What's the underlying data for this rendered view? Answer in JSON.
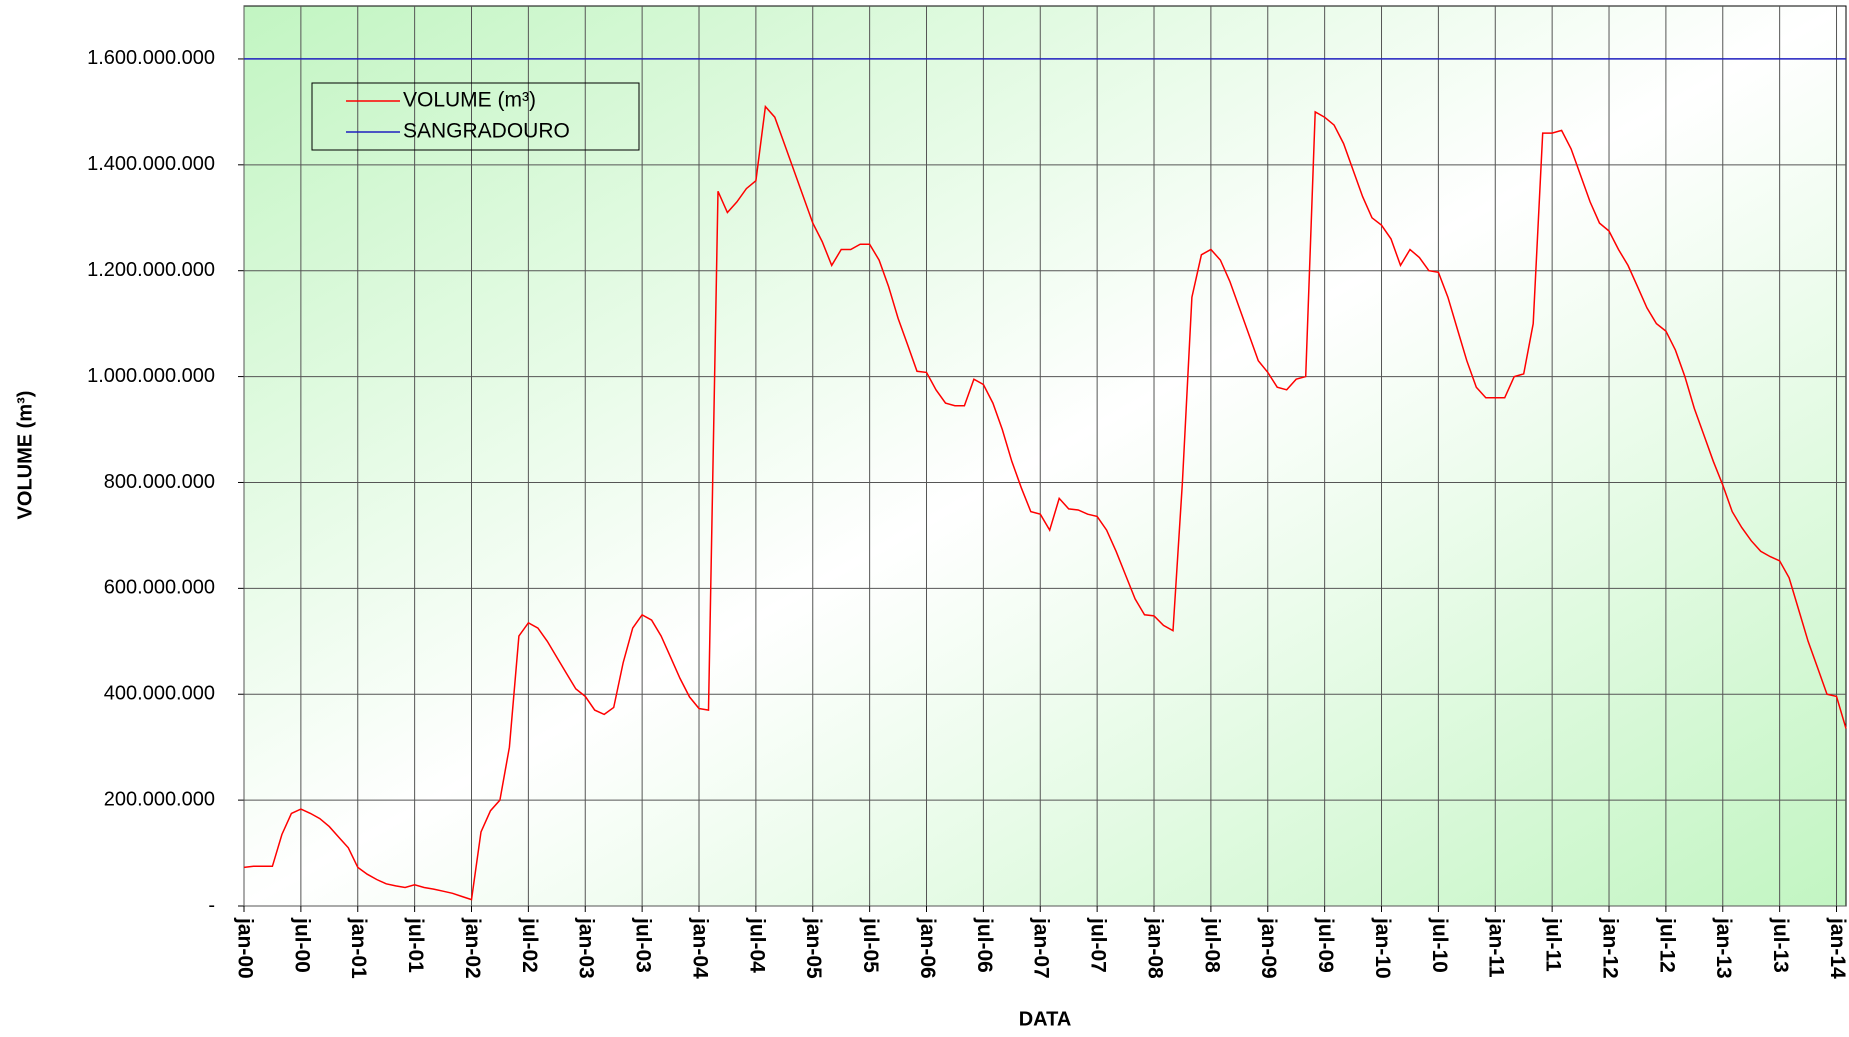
{
  "chart_data": {
    "type": "line",
    "ylabel": "VOLUME (m³)",
    "xlabel": "DATA",
    "xlim": [
      "2000-01",
      "2014-02"
    ],
    "ylim": [
      0,
      1700000000
    ],
    "yticks": [
      {
        "value": 0,
        "label": "-"
      },
      {
        "value": 200000000,
        "label": "200.000.000"
      },
      {
        "value": 400000000,
        "label": "400.000.000"
      },
      {
        "value": 600000000,
        "label": "600.000.000"
      },
      {
        "value": 800000000,
        "label": "800.000.000"
      },
      {
        "value": 1000000000,
        "label": "1.000.000.000"
      },
      {
        "value": 1200000000,
        "label": "1.200.000.000"
      },
      {
        "value": 1400000000,
        "label": "1.400.000.000"
      },
      {
        "value": 1600000000,
        "label": "1.600.000.000"
      }
    ],
    "xticks": [
      {
        "value": "2000-01",
        "label": "jan-00"
      },
      {
        "value": "2000-07",
        "label": "jul-00"
      },
      {
        "value": "2001-01",
        "label": "jan-01"
      },
      {
        "value": "2001-07",
        "label": "jul-01"
      },
      {
        "value": "2002-01",
        "label": "jan-02"
      },
      {
        "value": "2002-07",
        "label": "jul-02"
      },
      {
        "value": "2003-01",
        "label": "jan-03"
      },
      {
        "value": "2003-07",
        "label": "jul-03"
      },
      {
        "value": "2004-01",
        "label": "jan-04"
      },
      {
        "value": "2004-07",
        "label": "jul-04"
      },
      {
        "value": "2005-01",
        "label": "jan-05"
      },
      {
        "value": "2005-07",
        "label": "jul-05"
      },
      {
        "value": "2006-01",
        "label": "jan-06"
      },
      {
        "value": "2006-07",
        "label": "jul-06"
      },
      {
        "value": "2007-01",
        "label": "jan-07"
      },
      {
        "value": "2007-07",
        "label": "jul-07"
      },
      {
        "value": "2008-01",
        "label": "jan-08"
      },
      {
        "value": "2008-07",
        "label": "jul-08"
      },
      {
        "value": "2009-01",
        "label": "jan-09"
      },
      {
        "value": "2009-07",
        "label": "jul-09"
      },
      {
        "value": "2010-01",
        "label": "jan-10"
      },
      {
        "value": "2010-07",
        "label": "jul-10"
      },
      {
        "value": "2011-01",
        "label": "jan-11"
      },
      {
        "value": "2011-07",
        "label": "jul-11"
      },
      {
        "value": "2012-01",
        "label": "jan-12"
      },
      {
        "value": "2012-07",
        "label": "jul-12"
      },
      {
        "value": "2013-01",
        "label": "jan-13"
      },
      {
        "value": "2013-07",
        "label": "jul-13"
      },
      {
        "value": "2014-01",
        "label": "jan-14"
      }
    ],
    "grid": true,
    "legend": "upper left",
    "series": [
      {
        "name": "VOLUME (m³)",
        "color": "#ff0000",
        "x": [
          "2000-01",
          "2000-02",
          "2000-03",
          "2000-04",
          "2000-05",
          "2000-06",
          "2000-07",
          "2000-08",
          "2000-09",
          "2000-10",
          "2000-11",
          "2000-12",
          "2001-01",
          "2001-02",
          "2001-03",
          "2001-04",
          "2001-05",
          "2001-06",
          "2001-07",
          "2001-08",
          "2001-09",
          "2001-10",
          "2001-11",
          "2001-12",
          "2002-01",
          "2002-02",
          "2002-03",
          "2002-04",
          "2002-05",
          "2002-06",
          "2002-07",
          "2002-08",
          "2002-09",
          "2002-10",
          "2002-11",
          "2002-12",
          "2003-01",
          "2003-02",
          "2003-03",
          "2003-04",
          "2003-05",
          "2003-06",
          "2003-07",
          "2003-08",
          "2003-09",
          "2003-10",
          "2003-11",
          "2003-12",
          "2004-01",
          "2004-02",
          "2004-03",
          "2004-04",
          "2004-05",
          "2004-06",
          "2004-07",
          "2004-08",
          "2004-09",
          "2004-10",
          "2004-11",
          "2004-12",
          "2005-01",
          "2005-02",
          "2005-03",
          "2005-04",
          "2005-05",
          "2005-06",
          "2005-07",
          "2005-08",
          "2005-09",
          "2005-10",
          "2005-11",
          "2005-12",
          "2006-01",
          "2006-02",
          "2006-03",
          "2006-04",
          "2006-05",
          "2006-06",
          "2006-07",
          "2006-08",
          "2006-09",
          "2006-10",
          "2006-11",
          "2006-12",
          "2007-01",
          "2007-02",
          "2007-03",
          "2007-04",
          "2007-05",
          "2007-06",
          "2007-07",
          "2007-08",
          "2007-09",
          "2007-10",
          "2007-11",
          "2007-12",
          "2008-01",
          "2008-02",
          "2008-03",
          "2008-04",
          "2008-05",
          "2008-06",
          "2008-07",
          "2008-08",
          "2008-09",
          "2008-10",
          "2008-11",
          "2008-12",
          "2009-01",
          "2009-02",
          "2009-03",
          "2009-04",
          "2009-05",
          "2009-06",
          "2009-07",
          "2009-08",
          "2009-09",
          "2009-10",
          "2009-11",
          "2009-12",
          "2010-01",
          "2010-02",
          "2010-03",
          "2010-04",
          "2010-05",
          "2010-06",
          "2010-07",
          "2010-08",
          "2010-09",
          "2010-10",
          "2010-11",
          "2010-12",
          "2011-01",
          "2011-02",
          "2011-03",
          "2011-04",
          "2011-05",
          "2011-06",
          "2011-07",
          "2011-08",
          "2011-09",
          "2011-10",
          "2011-11",
          "2011-12",
          "2012-01",
          "2012-02",
          "2012-03",
          "2012-04",
          "2012-05",
          "2012-06",
          "2012-07",
          "2012-08",
          "2012-09",
          "2012-10",
          "2012-11",
          "2012-12",
          "2013-01",
          "2013-02",
          "2013-03",
          "2013-04",
          "2013-05",
          "2013-06",
          "2013-07",
          "2013-08",
          "2013-09",
          "2013-10",
          "2013-11",
          "2013-12",
          "2014-01",
          "2014-02"
        ],
        "values": [
          73000000,
          75000000,
          75000000,
          75000000,
          135000000,
          175000000,
          183000000,
          175000000,
          165000000,
          150000000,
          130000000,
          110000000,
          73000000,
          60000000,
          50000000,
          42000000,
          38000000,
          35000000,
          40000000,
          35000000,
          32000000,
          28000000,
          24000000,
          18000000,
          12000000,
          140000000,
          180000000,
          200000000,
          300000000,
          510000000,
          535000000,
          525000000,
          500000000,
          470000000,
          440000000,
          410000000,
          396000000,
          370000000,
          362000000,
          375000000,
          460000000,
          525000000,
          550000000,
          540000000,
          510000000,
          470000000,
          430000000,
          395000000,
          373000000,
          370000000,
          1350000000,
          1310000000,
          1330000000,
          1355000000,
          1370000000,
          1510000000,
          1490000000,
          1440000000,
          1390000000,
          1340000000,
          1290000000,
          1255000000,
          1210000000,
          1240000000,
          1240000000,
          1250000000,
          1250000000,
          1220000000,
          1170000000,
          1110000000,
          1060000000,
          1010000000,
          1008000000,
          975000000,
          950000000,
          945000000,
          945000000,
          995000000,
          985000000,
          950000000,
          900000000,
          840000000,
          790000000,
          745000000,
          740000000,
          710000000,
          770000000,
          750000000,
          748000000,
          740000000,
          736000000,
          710000000,
          670000000,
          625000000,
          580000000,
          550000000,
          548000000,
          530000000,
          520000000,
          800000000,
          1150000000,
          1230000000,
          1240000000,
          1220000000,
          1180000000,
          1130000000,
          1080000000,
          1030000000,
          1008000000,
          980000000,
          975000000,
          995000000,
          1000000000,
          1500000000,
          1490000000,
          1475000000,
          1440000000,
          1390000000,
          1340000000,
          1300000000,
          1286000000,
          1260000000,
          1210000000,
          1240000000,
          1225000000,
          1200000000,
          1197000000,
          1150000000,
          1090000000,
          1030000000,
          980000000,
          960000000,
          960000000,
          960000000,
          1000000000,
          1005000000,
          1100000000,
          1460000000,
          1460000000,
          1465000000,
          1430000000,
          1380000000,
          1330000000,
          1290000000,
          1275000000,
          1240000000,
          1210000000,
          1170000000,
          1130000000,
          1100000000,
          1086000000,
          1050000000,
          1000000000,
          940000000,
          890000000,
          840000000,
          795000000,
          745000000,
          715000000,
          690000000,
          670000000,
          660000000,
          652000000,
          620000000,
          560000000,
          500000000,
          450000000,
          400000000,
          396000000,
          335000000
        ]
      },
      {
        "name": "SANGRADOURO",
        "color": "#1f1fbf",
        "x": [
          "2000-01",
          "2014-02"
        ],
        "values": [
          1600000000,
          1600000000
        ]
      }
    ]
  }
}
